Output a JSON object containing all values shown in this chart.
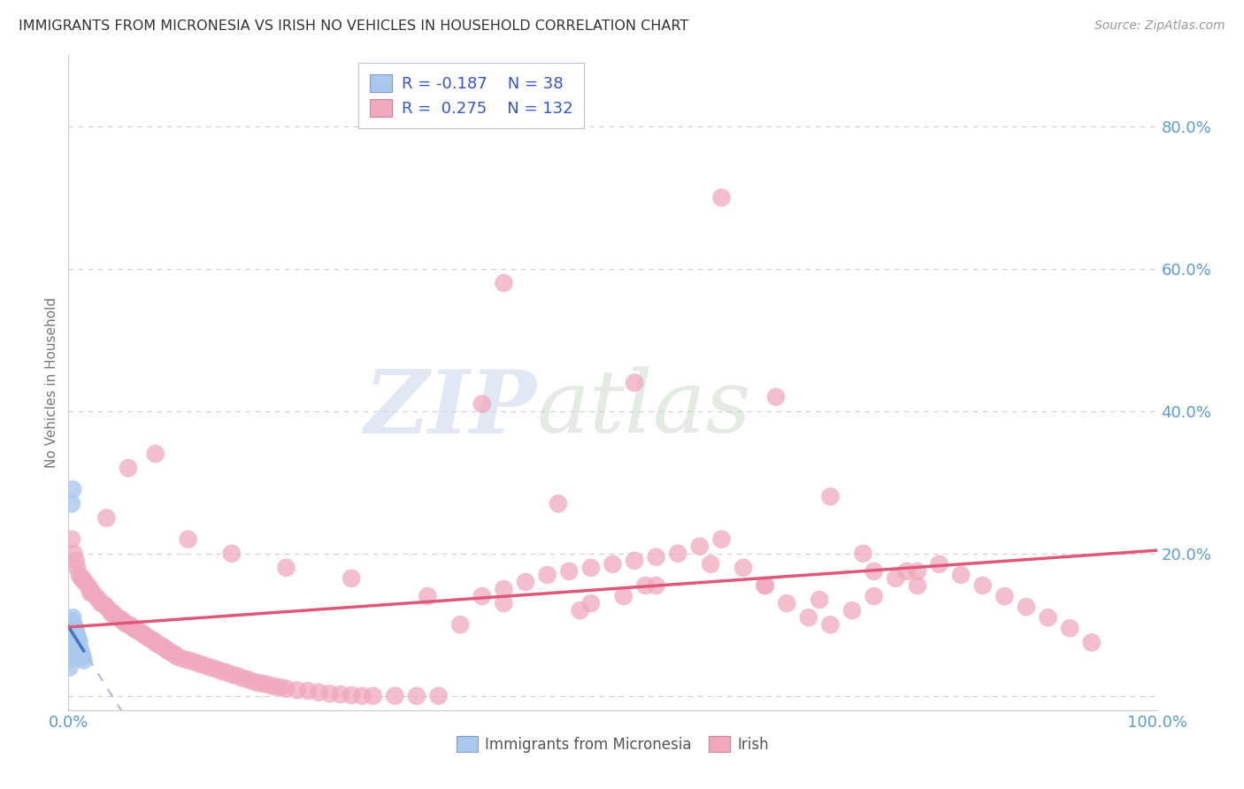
{
  "title": "IMMIGRANTS FROM MICRONESIA VS IRISH NO VEHICLES IN HOUSEHOLD CORRELATION CHART",
  "source": "Source: ZipAtlas.com",
  "ylabel": "No Vehicles in Household",
  "legend_blue_r": "-0.187",
  "legend_blue_n": "38",
  "legend_pink_r": "0.275",
  "legend_pink_n": "132",
  "watermark_zip": "ZIP",
  "watermark_atlas": "atlas",
  "blue_color": "#aac8ee",
  "pink_color": "#f0a8be",
  "blue_line_color": "#4472c4",
  "pink_line_color": "#e05878",
  "blue_dashed_color": "#b0b8d8",
  "background_color": "#ffffff",
  "grid_color": "#ccccdd",
  "title_color": "#333333",
  "tick_color": "#5b9bd5",
  "ylabel_color": "#777777",
  "source_color": "#999999",
  "legend_text_color": "#3355cc",
  "bottom_legend_color": "#555555",
  "xlim": [
    0.0,
    1.0
  ],
  "ylim": [
    -0.02,
    0.9
  ],
  "y_ticks": [
    0.0,
    0.2,
    0.4,
    0.6,
    0.8
  ],
  "y_tick_labels": [
    "",
    "20.0%",
    "40.0%",
    "60.0%",
    "80.0%"
  ],
  "blue_x": [
    0.0008,
    0.0012,
    0.0015,
    0.0018,
    0.002,
    0.0022,
    0.0025,
    0.003,
    0.003,
    0.003,
    0.0035,
    0.004,
    0.004,
    0.004,
    0.0045,
    0.005,
    0.005,
    0.005,
    0.005,
    0.006,
    0.006,
    0.006,
    0.007,
    0.007,
    0.008,
    0.008,
    0.009,
    0.009,
    0.01,
    0.01,
    0.011,
    0.012,
    0.013,
    0.014,
    0.0,
    0.001,
    0.003,
    0.004
  ],
  "blue_y": [
    0.065,
    0.07,
    0.055,
    0.06,
    0.095,
    0.075,
    0.08,
    0.105,
    0.09,
    0.065,
    0.085,
    0.11,
    0.09,
    0.07,
    0.075,
    0.1,
    0.085,
    0.07,
    0.055,
    0.095,
    0.08,
    0.065,
    0.09,
    0.07,
    0.085,
    0.065,
    0.08,
    0.06,
    0.075,
    0.055,
    0.065,
    0.06,
    0.055,
    0.05,
    0.05,
    0.04,
    0.27,
    0.29
  ],
  "pink_x": [
    0.005,
    0.008,
    0.01,
    0.012,
    0.015,
    0.018,
    0.02,
    0.022,
    0.025,
    0.028,
    0.03,
    0.033,
    0.035,
    0.038,
    0.04,
    0.042,
    0.045,
    0.048,
    0.05,
    0.052,
    0.055,
    0.058,
    0.06,
    0.062,
    0.065,
    0.068,
    0.07,
    0.073,
    0.075,
    0.078,
    0.08,
    0.082,
    0.085,
    0.088,
    0.09,
    0.092,
    0.095,
    0.098,
    0.1,
    0.105,
    0.11,
    0.115,
    0.12,
    0.125,
    0.13,
    0.135,
    0.14,
    0.145,
    0.15,
    0.155,
    0.16,
    0.165,
    0.17,
    0.175,
    0.18,
    0.185,
    0.19,
    0.195,
    0.2,
    0.21,
    0.22,
    0.23,
    0.24,
    0.25,
    0.26,
    0.27,
    0.28,
    0.3,
    0.32,
    0.34,
    0.36,
    0.38,
    0.4,
    0.42,
    0.44,
    0.46,
    0.48,
    0.5,
    0.52,
    0.54,
    0.56,
    0.58,
    0.6,
    0.62,
    0.64,
    0.66,
    0.68,
    0.7,
    0.72,
    0.74,
    0.76,
    0.78,
    0.8,
    0.82,
    0.84,
    0.86,
    0.88,
    0.9,
    0.92,
    0.94,
    0.003,
    0.007,
    0.013,
    0.02,
    0.035,
    0.055,
    0.08,
    0.11,
    0.15,
    0.2,
    0.26,
    0.33,
    0.4,
    0.47,
    0.53,
    0.59,
    0.64,
    0.69,
    0.73,
    0.77,
    0.45,
    0.48,
    0.51,
    0.54,
    0.4,
    0.52,
    0.38,
    0.6,
    0.65,
    0.7,
    0.74,
    0.78
  ],
  "pink_y": [
    0.2,
    0.18,
    0.17,
    0.165,
    0.16,
    0.155,
    0.15,
    0.145,
    0.14,
    0.135,
    0.13,
    0.128,
    0.125,
    0.12,
    0.115,
    0.115,
    0.11,
    0.108,
    0.105,
    0.102,
    0.1,
    0.098,
    0.095,
    0.093,
    0.09,
    0.088,
    0.085,
    0.082,
    0.08,
    0.078,
    0.075,
    0.073,
    0.07,
    0.068,
    0.065,
    0.063,
    0.06,
    0.058,
    0.055,
    0.052,
    0.05,
    0.048,
    0.045,
    0.043,
    0.04,
    0.038,
    0.035,
    0.033,
    0.03,
    0.028,
    0.025,
    0.023,
    0.02,
    0.018,
    0.017,
    0.015,
    0.013,
    0.012,
    0.01,
    0.008,
    0.007,
    0.005,
    0.003,
    0.002,
    0.001,
    0.0,
    0.0,
    0.0,
    0.0,
    0.0,
    0.1,
    0.14,
    0.15,
    0.16,
    0.17,
    0.175,
    0.18,
    0.185,
    0.19,
    0.195,
    0.2,
    0.21,
    0.22,
    0.18,
    0.155,
    0.13,
    0.11,
    0.1,
    0.12,
    0.14,
    0.165,
    0.175,
    0.185,
    0.17,
    0.155,
    0.14,
    0.125,
    0.11,
    0.095,
    0.075,
    0.22,
    0.19,
    0.165,
    0.145,
    0.25,
    0.32,
    0.34,
    0.22,
    0.2,
    0.18,
    0.165,
    0.14,
    0.13,
    0.12,
    0.155,
    0.185,
    0.155,
    0.135,
    0.2,
    0.175,
    0.27,
    0.13,
    0.14,
    0.155,
    0.58,
    0.44,
    0.41,
    0.7,
    0.42,
    0.28,
    0.175,
    0.155
  ]
}
